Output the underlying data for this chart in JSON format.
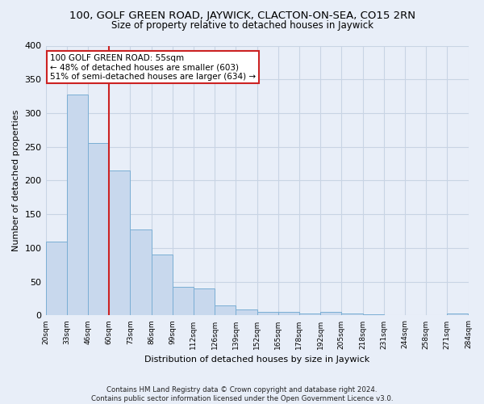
{
  "title": "100, GOLF GREEN ROAD, JAYWICK, CLACTON-ON-SEA, CO15 2RN",
  "subtitle": "Size of property relative to detached houses in Jaywick",
  "xlabel": "Distribution of detached houses by size in Jaywick",
  "ylabel": "Number of detached properties",
  "bar_values": [
    110,
    328,
    256,
    215,
    128,
    90,
    43,
    40,
    15,
    9,
    5,
    5,
    3,
    5,
    3,
    2,
    1,
    0,
    0,
    3
  ],
  "bin_edges_labels": [
    "20sqm",
    "33sqm",
    "46sqm",
    "60sqm",
    "73sqm",
    "86sqm",
    "99sqm",
    "112sqm",
    "126sqm",
    "139sqm",
    "152sqm",
    "165sqm",
    "178sqm",
    "192sqm",
    "205sqm",
    "218sqm",
    "231sqm",
    "244sqm",
    "258sqm",
    "271sqm",
    "284sqm"
  ],
  "bar_color": "#c8d8ed",
  "bar_edge_color": "#7aaed4",
  "annotation_text_line1": "100 GOLF GREEN ROAD: 55sqm",
  "annotation_text_line2": "← 48% of detached houses are smaller (603)",
  "annotation_text_line3": "51% of semi-detached houses are larger (634) →",
  "annotation_box_facecolor": "#ffffff",
  "annotation_box_edgecolor": "#cc2222",
  "vline_position": 2,
  "vline_color": "#cc2222",
  "ylim": [
    0,
    400
  ],
  "yticks": [
    0,
    50,
    100,
    150,
    200,
    250,
    300,
    350,
    400
  ],
  "grid_color": "#c8d4e4",
  "bg_color": "#e8eef8",
  "footer_line1": "Contains HM Land Registry data © Crown copyright and database right 2024.",
  "footer_line2": "Contains public sector information licensed under the Open Government Licence v3.0."
}
